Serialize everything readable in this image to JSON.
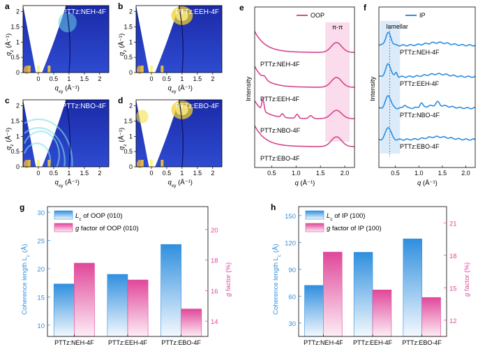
{
  "panels": {
    "a": {
      "letter": "a",
      "sample": "PTTz:NEH-4F",
      "has_qz_labels": true
    },
    "b": {
      "letter": "b",
      "sample": "PTTz:EEH-4F",
      "has_qz_labels": true
    },
    "c": {
      "letter": "c",
      "sample": "PTTz:NBO-4F",
      "has_qz_labels": true
    },
    "d": {
      "letter": "d",
      "sample": "PTTz:EBO-4F",
      "has_qz_labels": true
    }
  },
  "gixd_axes": {
    "qz_label": "q",
    "qz_sub": "z",
    "qz_unit": " (Å⁻¹)",
    "qxy_label": "q",
    "qxy_sub": "xy",
    "qxy_unit": " (Å⁻¹)",
    "qz_ticks": [
      "0",
      "0.5",
      "1",
      "1.5",
      "2"
    ],
    "qxy_ticks": [
      "0",
      "0.5",
      "1",
      "1.5",
      "2"
    ]
  },
  "profiles": {
    "e": {
      "letter": "e",
      "legend": "OOP",
      "ylabel": "Intensity",
      "xlabel_q": "q",
      "xlabel_unit": " (Å⁻¹)",
      "region_label": "π-π",
      "xticks": [
        "0.5",
        "1.0",
        "1.5",
        "2.0"
      ],
      "traces": [
        "PTTz:NEH-4F",
        "PTTz:EEH-4F",
        "PTTz:NBO-4F",
        "PTTz:EBO-4F"
      ],
      "color": "#d4478f"
    },
    "f": {
      "letter": "f",
      "legend": "IP",
      "ylabel": "Intensity",
      "xlabel_q": "q",
      "xlabel_unit": " (Å⁻¹)",
      "region_label": "lamellar",
      "xticks": [
        "0.5",
        "1.0",
        "1.5",
        "2.0"
      ],
      "traces": [
        "PTTz:NEH-4F",
        "PTTz:EEH-4F",
        "PTTz:NBO-4F",
        "PTTz:EBO-4F"
      ],
      "color": "#2b8de0"
    }
  },
  "chart_data": [
    {
      "id": "g",
      "type": "bar",
      "letter": "g",
      "categories": [
        "PTTz:NEH-4F",
        "PTTz:EEH-4F",
        "PTTz:EBO-4F"
      ],
      "series": [
        {
          "name": "Lc of OOP (010)",
          "legend_main": "L",
          "legend_sub": "c",
          "legend_rest": " of OOP (010)",
          "axis": "left",
          "values": [
            17.3,
            19.0,
            24.3
          ]
        },
        {
          "name": "g factor of OOP (010)",
          "legend_main": "g",
          "legend_sub": "",
          "legend_rest": " factor of OOP (010)",
          "axis": "right",
          "values": [
            17.8,
            16.7,
            14.8
          ]
        }
      ],
      "ylabel_left": "Coherence length L",
      "ylabel_left_sub": "c",
      "ylabel_left_unit": " (Å)",
      "ylabel_right_g": "g",
      "ylabel_right_rest": " factor (%)",
      "ylim_left": [
        8,
        31
      ],
      "ylim_right": [
        13,
        21.5
      ],
      "yticks_left": [
        "10",
        "15",
        "20",
        "25",
        "30"
      ],
      "yticks_right": [
        "14",
        "16",
        "18",
        "20"
      ]
    },
    {
      "id": "h",
      "type": "bar",
      "letter": "h",
      "categories": [
        "PTTz:NEH-4F",
        "PTTz:EEH-4F",
        "PTTz:EBO-4F"
      ],
      "series": [
        {
          "name": "Lc of IP (100)",
          "legend_main": "L",
          "legend_sub": "c",
          "legend_rest": " of IP (100)",
          "axis": "left",
          "values": [
            72,
            109,
            124
          ]
        },
        {
          "name": "g factor of IP (100)",
          "legend_main": "g",
          "legend_sub": "",
          "legend_rest": " factor of IP (100)",
          "axis": "right",
          "values": [
            18.3,
            14.8,
            14.1
          ]
        }
      ],
      "ylabel_left": "Coherence length L",
      "ylabel_left_sub": "c",
      "ylabel_left_unit": " (Å)",
      "ylabel_right_g": "g",
      "ylabel_right_rest": " factor (%)",
      "ylim_left": [
        15,
        160
      ],
      "ylim_right": [
        10.5,
        22.5
      ],
      "yticks_left": [
        "30",
        "60",
        "90",
        "120",
        "150"
      ],
      "yticks_right": [
        "12",
        "15",
        "18",
        "21"
      ]
    }
  ],
  "colors": {
    "blue": "#2f8fde",
    "pink": "#e0479a",
    "gixd_bg": "#1b2bb0"
  }
}
